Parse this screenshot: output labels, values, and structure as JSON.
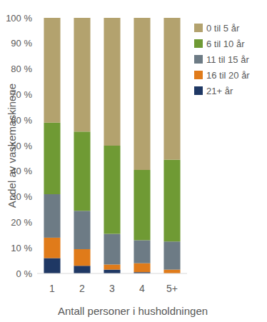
{
  "chart_data": {
    "type": "bar",
    "stacked": true,
    "grid": false,
    "legend": "right",
    "x_label": "Antall personer i husholdningen",
    "y_label": "Andel av vaskemaskinene",
    "categories": [
      "1",
      "2",
      "3",
      "4",
      "5+"
    ],
    "ylim": [
      0,
      100
    ],
    "yticks": [
      {
        "value": 0,
        "label": "0 %"
      },
      {
        "value": 10,
        "label": "10 %"
      },
      {
        "value": 20,
        "label": "20 %"
      },
      {
        "value": 30,
        "label": "30 %"
      },
      {
        "value": 40,
        "label": "40 %"
      },
      {
        "value": 50,
        "label": "50 %"
      },
      {
        "value": 60,
        "label": "60 %"
      },
      {
        "value": 70,
        "label": "70 %"
      },
      {
        "value": 80,
        "label": "80 %"
      },
      {
        "value": 90,
        "label": "90 %"
      },
      {
        "value": 100,
        "label": "100 %"
      }
    ],
    "series": [
      {
        "name": "21+ år",
        "color": "#1f3864",
        "values": [
          6,
          3,
          1.5,
          0.5,
          0
        ]
      },
      {
        "name": "16 til 20 år",
        "color": "#e07b1a",
        "values": [
          8,
          6.5,
          2,
          3.5,
          1.5
        ]
      },
      {
        "name": "11 til 15 år",
        "color": "#6d7b85",
        "values": [
          17,
          15,
          12,
          9,
          11
        ]
      },
      {
        "name": "6 til 10 år",
        "color": "#6f9a34",
        "values": [
          28,
          31,
          34.5,
          27.5,
          32
        ]
      },
      {
        "name": "0 til 5 år",
        "color": "#b3a26e",
        "values": [
          41,
          44.5,
          50,
          59.5,
          55.5
        ]
      }
    ]
  }
}
